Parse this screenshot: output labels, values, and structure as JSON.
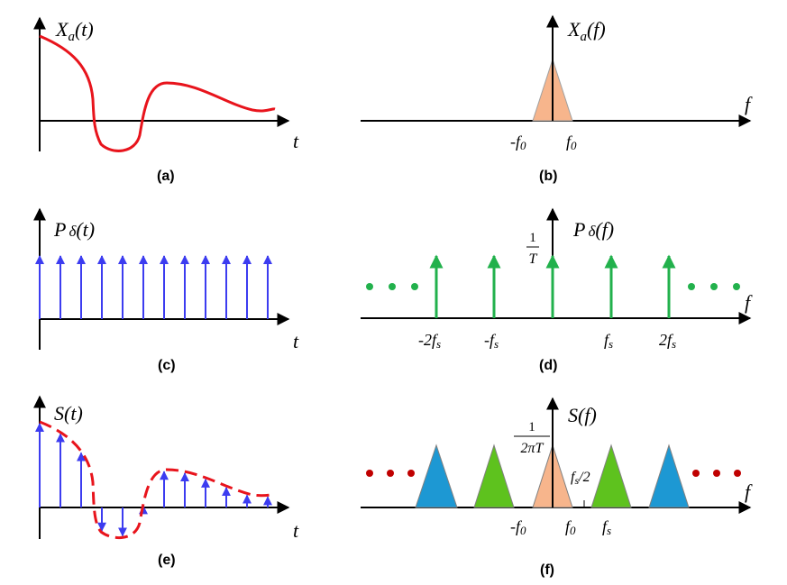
{
  "colors": {
    "signal": "#e8141c",
    "impulse": "#3c3cf0",
    "green_impulse": "#22b14c",
    "base_band": "#f7b58c",
    "replica_green": "#5ec21e",
    "replica_blue": "#1d98d3",
    "dots_green": "#22b14c",
    "dots_red": "#c00000"
  },
  "panels": {
    "a": {
      "caption": "(a)",
      "ylabel_main": "X",
      "ylabel_sub": "a",
      "ylabel_arg": "(t)",
      "xlabel": "t"
    },
    "b": {
      "caption": "(b)",
      "ylabel_main": "X",
      "ylabel_sub": "a",
      "ylabel_arg": "(f)",
      "xlabel": "f",
      "tick_neg_main": "-f",
      "tick_neg_sub": "0",
      "tick_pos_main": "f",
      "tick_pos_sub": "0"
    },
    "c": {
      "caption": "(c)",
      "ylabel_main": "P",
      "ylabel_delta": "δ",
      "ylabel_arg": "(t)",
      "xlabel": "t",
      "impulse_count": 12
    },
    "d": {
      "caption": "(d)",
      "ylabel_main": "P",
      "ylabel_delta": "δ",
      "ylabel_arg": "(f)",
      "xlabel": "f",
      "height_num": "1",
      "height_den": "T",
      "ticks": [
        {
          "main": "-2f",
          "sub": "s"
        },
        {
          "main": "-f",
          "sub": "s"
        },
        {
          "main": "f",
          "sub": "s"
        },
        {
          "main": "2f",
          "sub": "s"
        }
      ]
    },
    "e": {
      "caption": "(e)",
      "ylabel": "S(t)",
      "xlabel": "t"
    },
    "f": {
      "caption": "(f)",
      "ylabel": "S(f)",
      "xlabel": "f",
      "height_num": "1",
      "height_den": "2πT",
      "half_main": "f",
      "half_sub": "s",
      "half_tail": "/2",
      "tick_neg_main": "-f",
      "tick_neg_sub": "0",
      "tick_pos_main": "f",
      "tick_pos_sub": "0",
      "tick_fs_main": "f",
      "tick_fs_sub": "s"
    }
  }
}
